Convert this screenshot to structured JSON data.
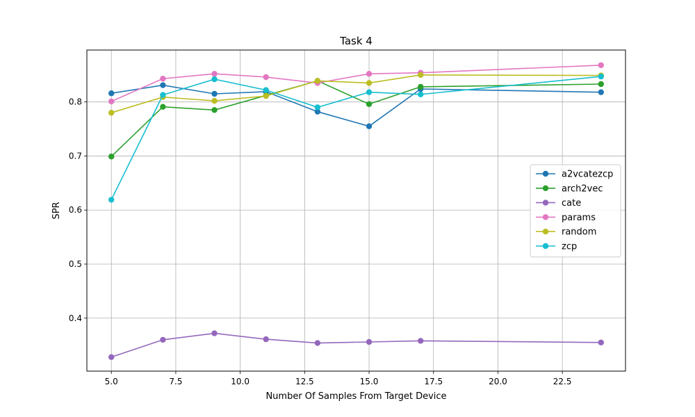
{
  "chart_data": {
    "type": "line",
    "title": "Task 4",
    "xlabel": "Number Of Samples From Target Device",
    "ylabel": "SPR",
    "xlim": [
      4.05,
      24.95
    ],
    "ylim": [
      0.302,
      0.896
    ],
    "x_ticks": [
      5.0,
      7.5,
      10.0,
      12.5,
      15.0,
      17.5,
      20.0,
      22.5
    ],
    "x_tick_labels": [
      "5.0",
      "7.5",
      "10.0",
      "12.5",
      "15.0",
      "17.5",
      "20.0",
      "22.5"
    ],
    "y_ticks": [
      0.4,
      0.5,
      0.6,
      0.7,
      0.8
    ],
    "y_tick_labels": [
      "0.4",
      "0.5",
      "0.6",
      "0.7",
      "0.8"
    ],
    "grid": true,
    "legend_position": "center-right",
    "x": [
      5,
      7,
      9,
      11,
      13,
      15,
      17,
      24
    ],
    "series": [
      {
        "name": "a2vcatezcp",
        "color": "#1f77b4",
        "values": [
          0.816,
          0.831,
          0.815,
          0.819,
          0.782,
          0.755,
          0.824,
          0.818
        ]
      },
      {
        "name": "arch2vec",
        "color": "#2ca02c",
        "values": [
          0.699,
          0.791,
          0.785,
          0.812,
          0.839,
          0.796,
          0.828,
          0.833
        ]
      },
      {
        "name": "cate",
        "color": "#9467bd",
        "values": [
          0.328,
          0.36,
          0.372,
          0.361,
          0.354,
          0.356,
          0.358,
          0.355
        ]
      },
      {
        "name": "params",
        "color": "#e377c2",
        "values": [
          0.801,
          0.843,
          0.852,
          0.846,
          0.835,
          0.852,
          0.854,
          0.868
        ]
      },
      {
        "name": "random",
        "color": "#bcbd22",
        "values": [
          0.78,
          0.809,
          0.802,
          0.811,
          0.839,
          0.835,
          0.85,
          0.849
        ]
      },
      {
        "name": "zcp",
        "color": "#17becf",
        "values": [
          0.619,
          0.813,
          0.842,
          0.822,
          0.79,
          0.818,
          0.814,
          0.847
        ]
      }
    ]
  }
}
